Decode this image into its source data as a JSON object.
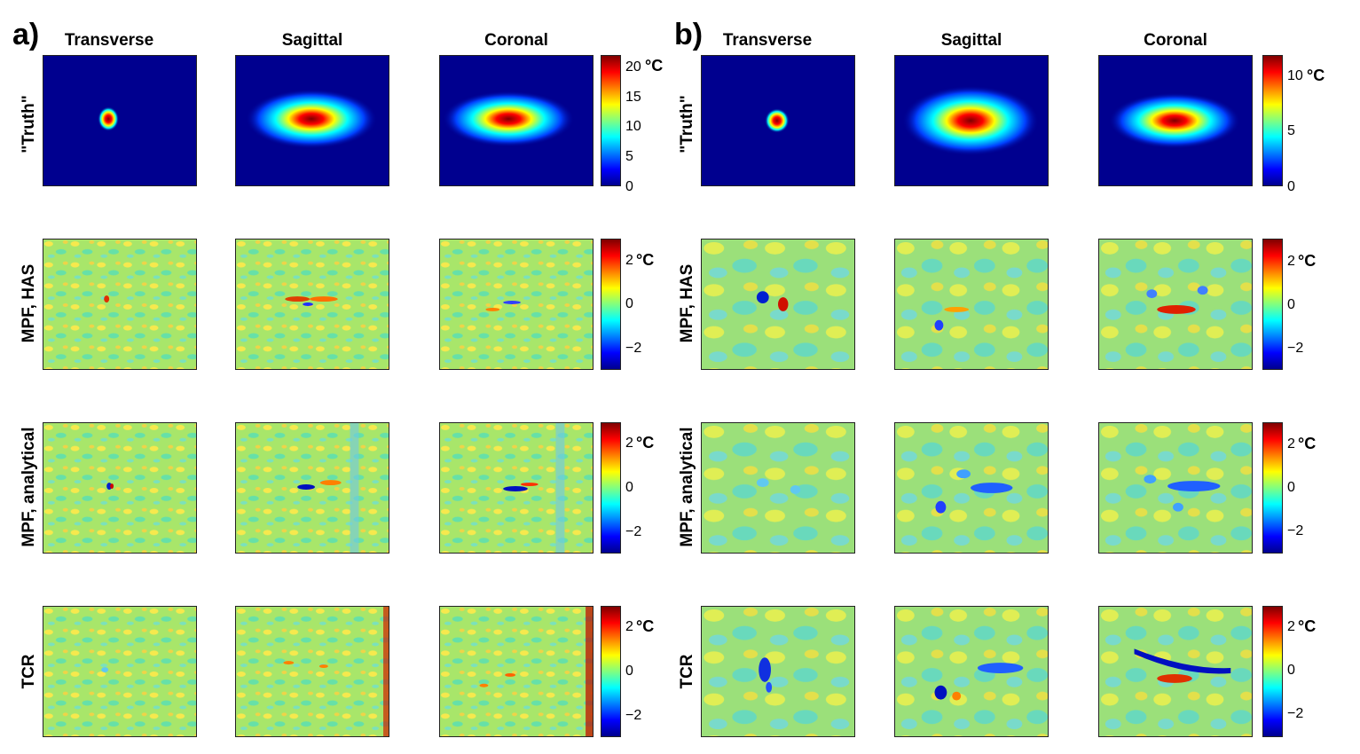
{
  "panels": [
    {
      "label": "a)",
      "columns": [
        "Transverse",
        "Sagittal",
        "Coronal"
      ]
    },
    {
      "label": "b)",
      "columns": [
        "Transverse",
        "Sagittal",
        "Coronal"
      ]
    }
  ],
  "rows": [
    "\"Truth\"",
    "MPF, HAS",
    "MPF, analytical",
    "TCR"
  ],
  "colorbars": {
    "a": [
      {
        "unit": "°C",
        "ticks": [
          "20",
          "15",
          "10",
          "5",
          "0"
        ],
        "first_tick_with_unit": "20"
      },
      {
        "unit": "°C",
        "ticks": [
          "2",
          "0",
          "−2"
        ]
      },
      {
        "unit": "°C",
        "ticks": [
          "2",
          "0",
          "−2"
        ]
      },
      {
        "unit": "°C",
        "ticks": [
          "2",
          "0",
          "−2"
        ]
      }
    ],
    "b": [
      {
        "unit": "°C",
        "ticks": [
          "10",
          "5",
          "0"
        ]
      },
      {
        "unit": "°C",
        "ticks": [
          "2",
          "0",
          "−2"
        ]
      },
      {
        "unit": "°C",
        "ticks": [
          "2",
          "0",
          "−2"
        ]
      },
      {
        "unit": "°C",
        "ticks": [
          "2",
          "0",
          "−2"
        ]
      }
    ]
  },
  "colors": {
    "background_hot": "#00008f",
    "background_err": "#9fe36a",
    "hot": "#c80000",
    "cold": "#0000c8"
  }
}
